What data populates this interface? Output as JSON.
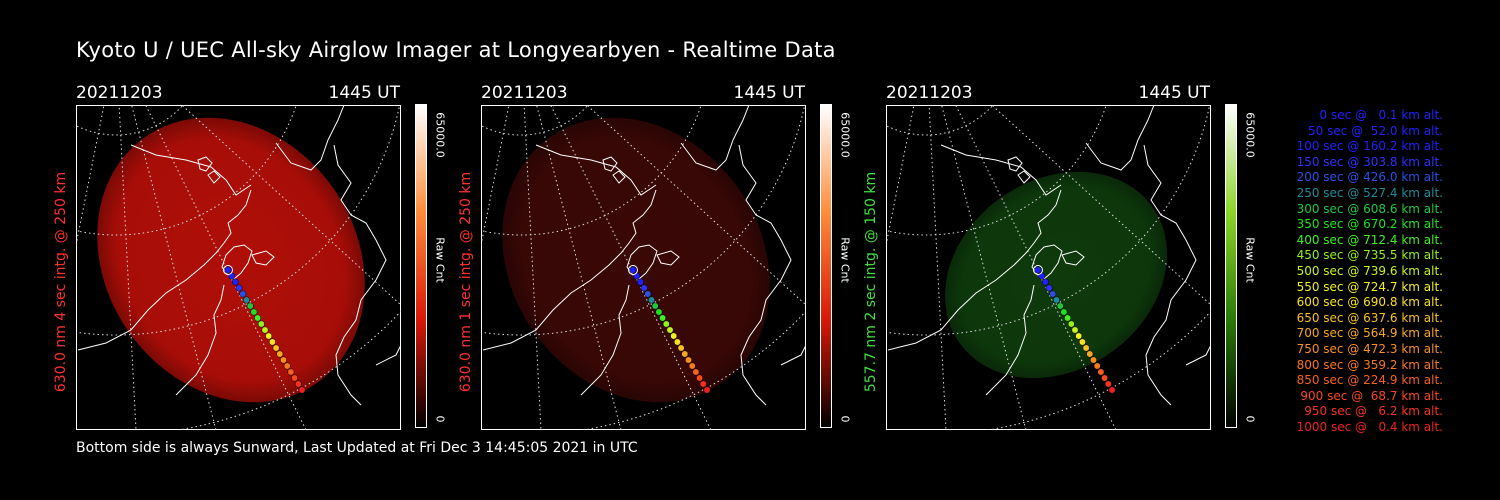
{
  "title": "Kyoto U / UEC All-sky Airglow Imager at Longyearbyen - Realtime Data",
  "footer": "Bottom side is always Sunward, Last Updated at Fri Dec  3 14:45:05 2021 in UTC",
  "panels": [
    {
      "date": "20211203",
      "time": "1445 UT",
      "side_label": "630.0 nm 4 sec intg. @ 250 km",
      "label_color": "#ff3030",
      "cb_max": "65000.0",
      "cb_min": "0",
      "cb_unit": "Raw Cnt",
      "glow_color": "#b00e08",
      "cbar_palette": [
        "#000000",
        "#d81808",
        "#ff8c3a",
        "#ffffff"
      ]
    },
    {
      "date": "20211203",
      "time": "1445 UT",
      "side_label": "630.0 nm 1 sec intg. @ 250 km",
      "label_color": "#ff3030",
      "cb_max": "65000.0",
      "cb_min": "0",
      "cb_unit": "Raw Cnt",
      "glow_color": "#3a0806",
      "cbar_palette": [
        "#000000",
        "#d81808",
        "#ff8c3a",
        "#ffffff"
      ]
    },
    {
      "date": "20211203",
      "time": "1445 UT",
      "side_label": "557.7 nm 2 sec intg. @ 150 km",
      "label_color": "#40e040",
      "cb_max": "65000.0",
      "cb_min": "0",
      "cb_unit": "Raw Cnt",
      "glow_color": "#0e3a0c",
      "cbar_palette": [
        "#000000",
        "#2a7a08",
        "#8cd428",
        "#ffffff"
      ]
    }
  ],
  "legend": [
    {
      "text": "0 sec @   0.1 km alt.",
      "color": "#2020ff"
    },
    {
      "text": "50 sec @  52.0 km alt.",
      "color": "#2020ff"
    },
    {
      "text": "100 sec @ 160.2 km alt.",
      "color": "#2020ff"
    },
    {
      "text": "150 sec @ 303.8 km alt.",
      "color": "#3030ff"
    },
    {
      "text": "200 sec @ 426.0 km alt.",
      "color": "#2a50e8"
    },
    {
      "text": "250 sec @ 527.4 km alt.",
      "color": "#208a9a"
    },
    {
      "text": "300 sec @ 608.6 km alt.",
      "color": "#20c840"
    },
    {
      "text": "350 sec @ 670.2 km alt.",
      "color": "#20e020"
    },
    {
      "text": "400 sec @ 712.4 km alt.",
      "color": "#40f020"
    },
    {
      "text": "450 sec @ 735.5 km alt.",
      "color": "#90f020"
    },
    {
      "text": "500 sec @ 739.6 km alt.",
      "color": "#c8f020"
    },
    {
      "text": "550 sec @ 724.7 km alt.",
      "color": "#f0f020"
    },
    {
      "text": "600 sec @ 690.8 km alt.",
      "color": "#f8e020"
    },
    {
      "text": "650 sec @ 637.6 km alt.",
      "color": "#f8c020"
    },
    {
      "text": "700 sec @ 564.9 km alt.",
      "color": "#f8a820"
    },
    {
      "text": "750 sec @ 472.3 km alt.",
      "color": "#f89020"
    },
    {
      "text": "800 sec @ 359.2 km alt.",
      "color": "#f87820"
    },
    {
      "text": "850 sec @ 224.9 km alt.",
      "color": "#f86020"
    },
    {
      "text": "900 sec @  68.7 km alt.",
      "color": "#f84820"
    },
    {
      "text": "950 sec @   6.2 km alt.",
      "color": "#f83020"
    },
    {
      "text": "1000 sec @   0.4 km alt.",
      "color": "#f02020"
    }
  ]
}
